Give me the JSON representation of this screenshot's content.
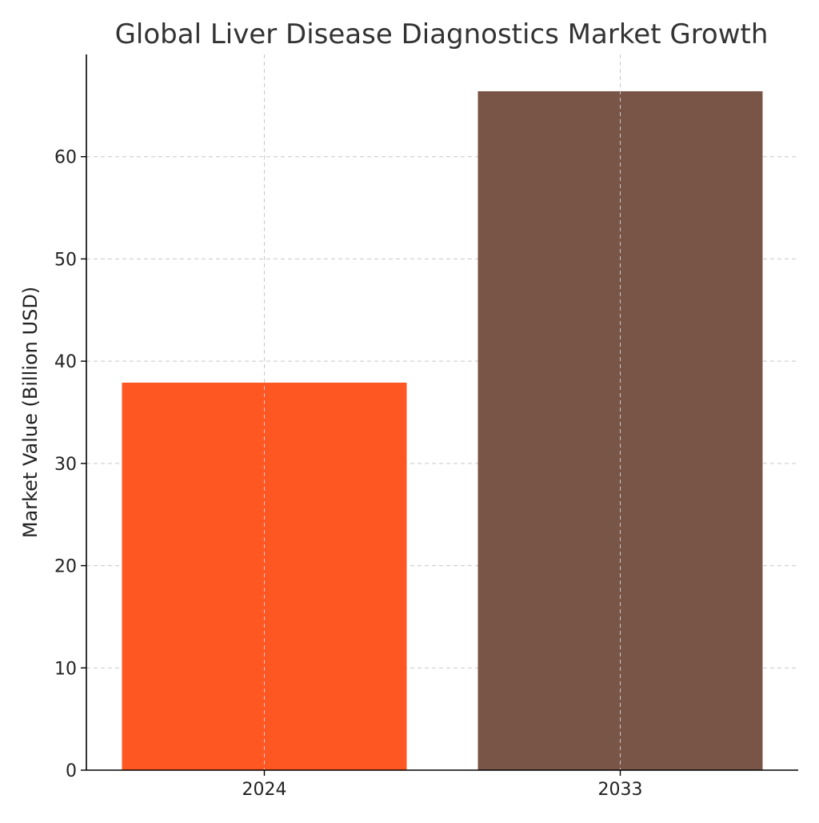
{
  "chart_data": {
    "type": "bar",
    "title": "Global Liver Disease Diagnostics Market Growth",
    "xlabel": "",
    "ylabel": "Market Value (Billion USD)",
    "categories": [
      "2024",
      "2033"
    ],
    "values": [
      37.9,
      66.4
    ],
    "colors": [
      "#ff5722",
      "#795548"
    ],
    "ylim": [
      0,
      70
    ],
    "yticks": [
      0,
      10,
      20,
      30,
      40,
      50,
      60
    ],
    "grid": true
  }
}
